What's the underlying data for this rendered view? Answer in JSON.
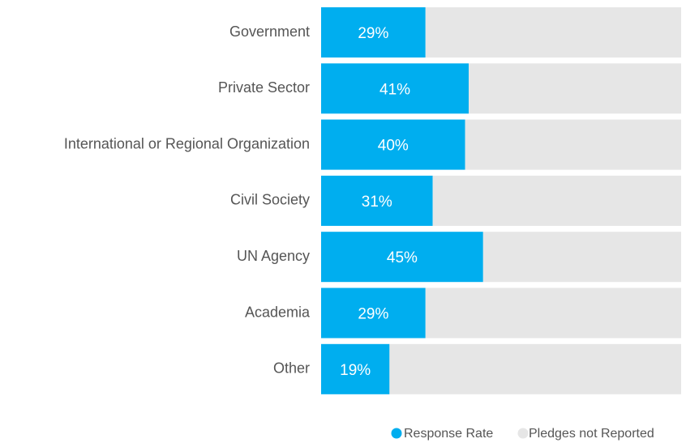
{
  "chart_data": {
    "type": "stacked_barh",
    "categories": [
      "Government",
      "Private Sector",
      "International or Regional Organization",
      "Civil Society",
      "UN Agency",
      "Academia",
      "Other"
    ],
    "series": [
      {
        "name": "Response Rate",
        "color": "#00aeef",
        "values": [
          29,
          41,
          40,
          31,
          45,
          29,
          19
        ],
        "value_labels": [
          "29%",
          "41%",
          "40%",
          "31%",
          "45%",
          "29%",
          "19%"
        ]
      },
      {
        "name": "Pledges not Reported",
        "color": "#e6e6e6",
        "values": [
          71,
          59,
          60,
          69,
          55,
          71,
          81
        ]
      }
    ],
    "xlim": [
      0,
      100
    ],
    "legend": "bottom-right"
  }
}
